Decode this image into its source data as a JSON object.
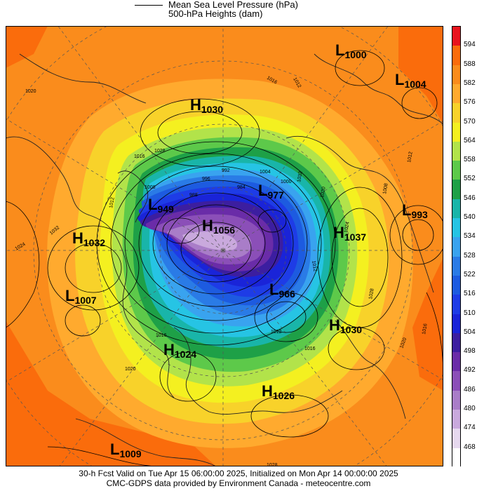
{
  "legend": {
    "mslp_label": "Mean Sea Level Pressure (hPa)",
    "heights_label": "500-hPa Heights (dam)"
  },
  "colorbar": {
    "ticks": [
      "594",
      "588",
      "582",
      "576",
      "570",
      "564",
      "558",
      "552",
      "546",
      "540",
      "534",
      "528",
      "522",
      "516",
      "510",
      "504",
      "498",
      "492",
      "486",
      "480",
      "474",
      "468"
    ],
    "colors": [
      "#e8141e",
      "#fa6c0c",
      "#fa8c1c",
      "#ffaa2e",
      "#f8d22a",
      "#f4f020",
      "#b2e34a",
      "#5dc94a",
      "#1ea047",
      "#19b5a9",
      "#26c4e4",
      "#39a3ef",
      "#2a7be6",
      "#1d5be0",
      "#1e3ce6",
      "#1a24d8",
      "#3c1ea0",
      "#6a2ca8",
      "#8b4fb8",
      "#a97dc8",
      "#c9a9dd",
      "#e6d8ef",
      "#ffffff"
    ]
  },
  "pressure_centers": [
    {
      "type": "L",
      "value": "1000"
    },
    {
      "type": "L",
      "value": "1004"
    },
    {
      "type": "H",
      "value": "1030"
    },
    {
      "type": "L",
      "value": "949"
    },
    {
      "type": "H",
      "value": "1056"
    },
    {
      "type": "L",
      "value": "977"
    },
    {
      "type": "L",
      "value": "993"
    },
    {
      "type": "H",
      "value": "1032"
    },
    {
      "type": "H",
      "value": "1037"
    },
    {
      "type": "L",
      "value": "1007"
    },
    {
      "type": "L",
      "value": "966"
    },
    {
      "type": "H",
      "value": "1030"
    },
    {
      "type": "H",
      "value": "1024"
    },
    {
      "type": "H",
      "value": "1026"
    },
    {
      "type": "L",
      "value": "1009"
    }
  ],
  "isobar_labels": [
    "1012",
    "1016",
    "1020",
    "1024",
    "1032",
    "1028",
    "992",
    "996",
    "1000",
    "1004",
    "1008",
    "988",
    "984",
    "1012",
    "1016",
    "1020",
    "1024",
    "1028",
    "1032",
    "1012",
    "1008",
    "1016",
    "1020",
    "1016",
    "1012",
    "1012",
    "1020",
    "1028",
    "1016",
    "1020"
  ],
  "footer": {
    "line1": "30-h Fcst Valid on Tue Apr 15 06:00:00 2025, Initialized on Mon Apr 14 00:00:00 2025",
    "line2": "CMC-GDPS data provided by Environment Canada - meteocentre.com"
  }
}
